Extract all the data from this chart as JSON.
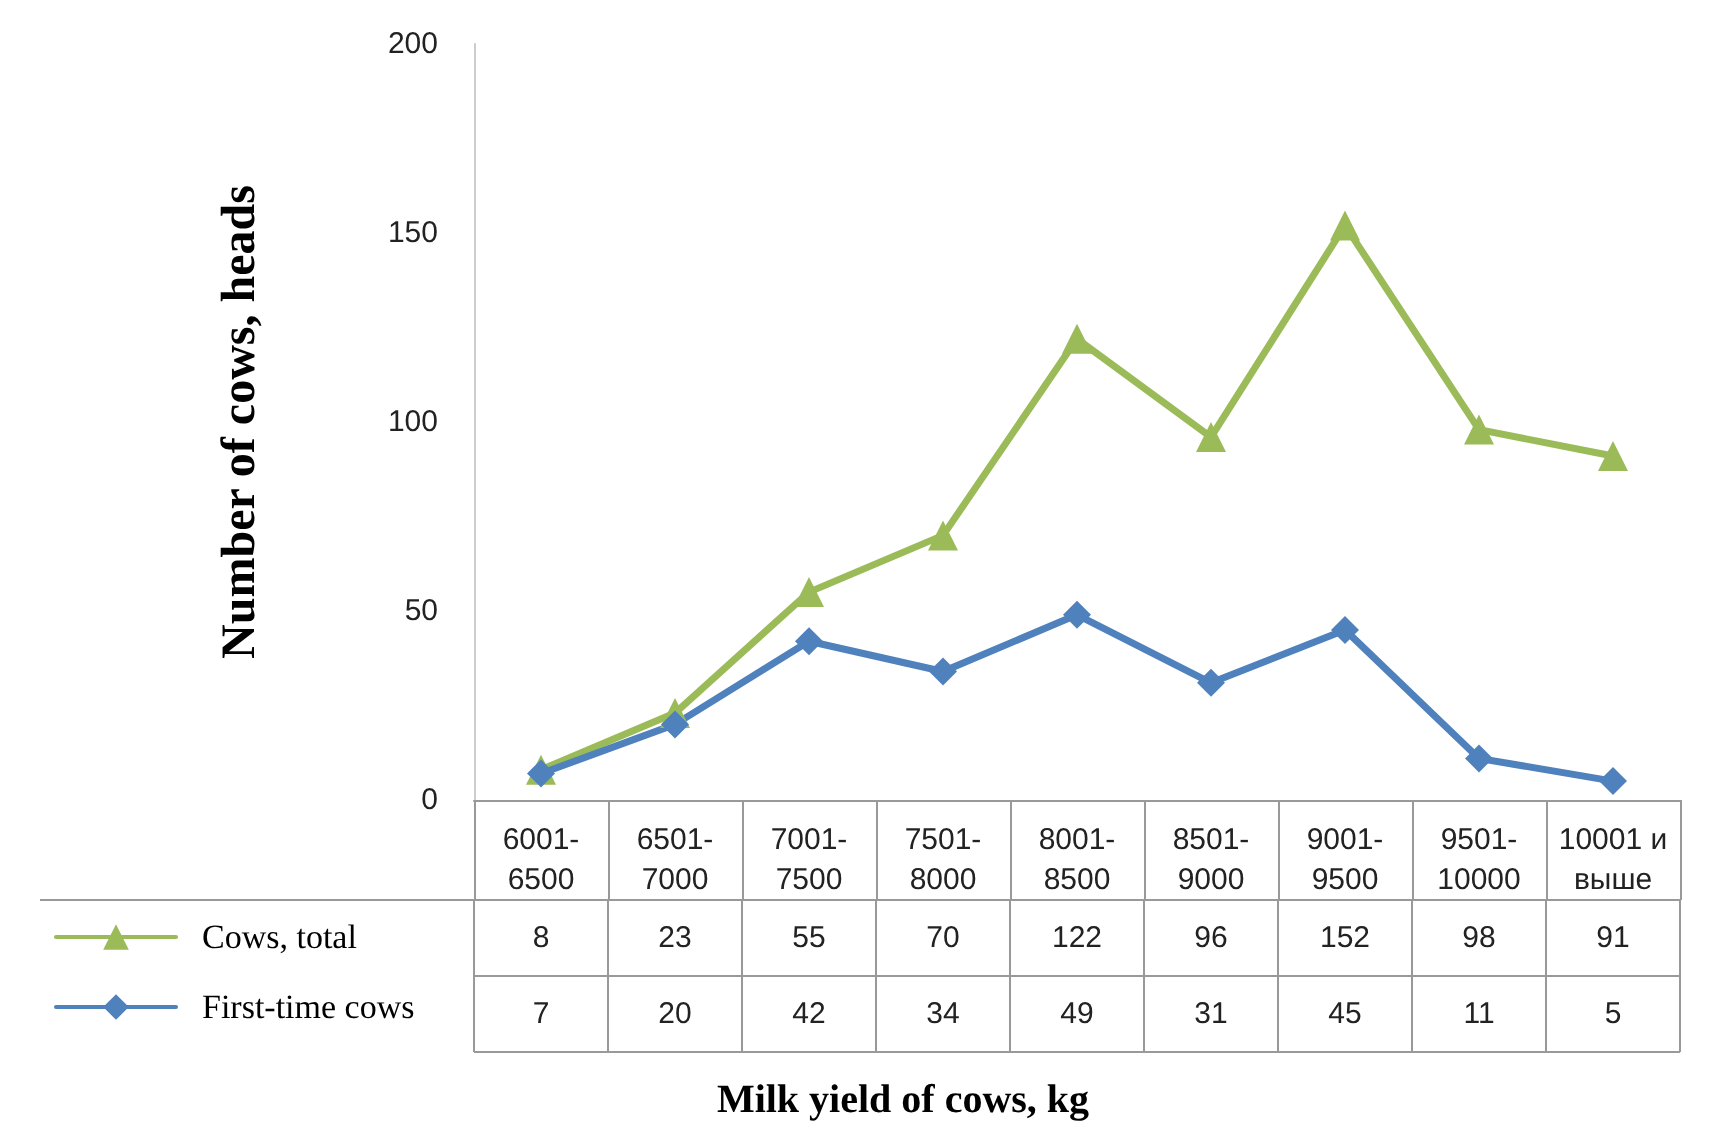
{
  "chart_data": {
    "type": "line",
    "xlabel": "Milk yield of cows, kg",
    "ylabel": "Number of cows, heads",
    "categories": [
      "6001-6500",
      "6501-7000",
      "7001-7500",
      "7501-8000",
      "8001-8500",
      "8501-9000",
      "9001-9500",
      "9501-10000",
      "10001 и выше"
    ],
    "series": [
      {
        "name": "Cows, total",
        "color": "#9bbb59",
        "marker": "triangle",
        "values": [
          8,
          23,
          55,
          70,
          122,
          96,
          152,
          98,
          91
        ]
      },
      {
        "name": "First-time cows",
        "color": "#4f81bd",
        "marker": "diamond",
        "values": [
          7,
          20,
          42,
          34,
          49,
          31,
          45,
          11,
          5
        ]
      }
    ],
    "ylim": [
      0,
      200
    ],
    "yticks": [
      0,
      50,
      100,
      150,
      200
    ],
    "grid": false,
    "legend": "bottom left",
    "data_labels": true,
    "line_style": "solid"
  }
}
